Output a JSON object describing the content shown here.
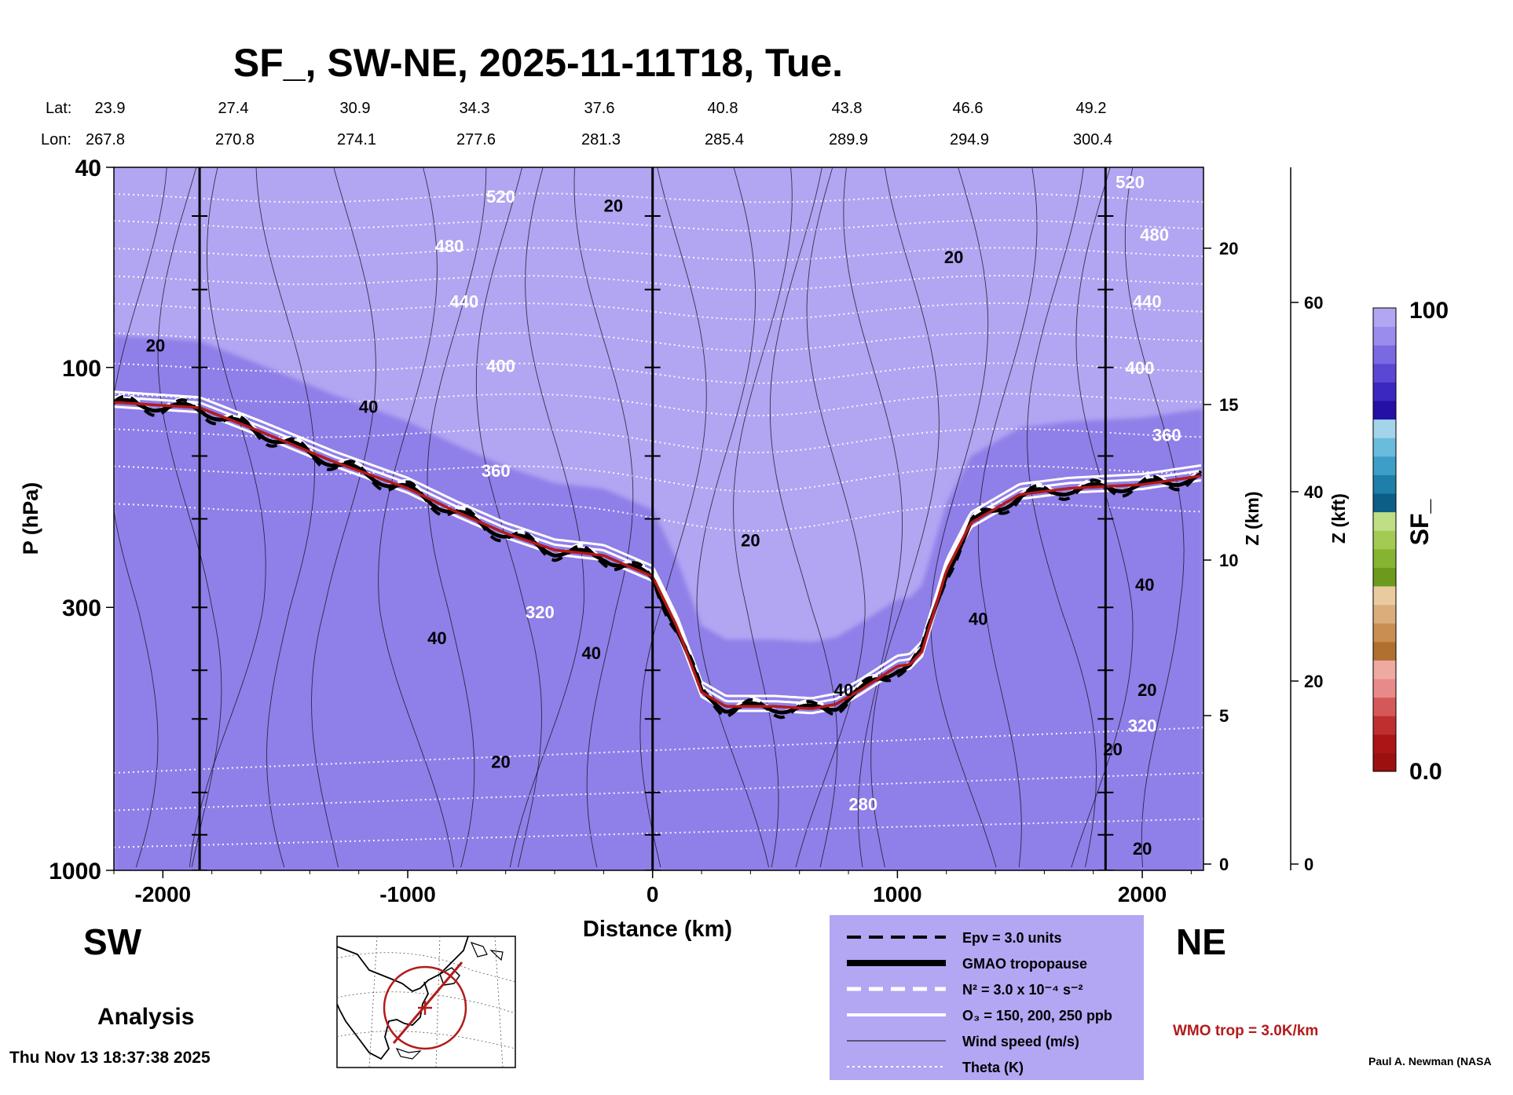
{
  "chart_data": {
    "type": "heatmap",
    "title": "SF_, SW-NE, 2025-11-11T18, Tue.",
    "xlabel": "Distance (km)",
    "ylabel": "P (hPa)",
    "right_axis_km_label": "Z (km)",
    "right_axis_kft_label": "Z (kft)",
    "colorbar_label": "SF_",
    "colorbar_max_label": "100",
    "colorbar_min_label": "0.0",
    "xlim": [
      -2200,
      2250
    ],
    "ylim": [
      1000,
      40
    ],
    "y_scale": "log",
    "x_ticks": [
      -2000,
      -1000,
      0,
      1000,
      2000
    ],
    "x_tick_labels": [
      "-2000",
      "-1000",
      "0",
      "1000",
      "2000"
    ],
    "y_ticks": [
      40,
      100,
      300,
      1000
    ],
    "y_tick_labels": [
      "40",
      "100",
      "300",
      "1000"
    ],
    "z_km_ticks": [
      0,
      5,
      10,
      15,
      20
    ],
    "z_km_tick_labels": [
      "0",
      "5",
      "10",
      "15",
      "20"
    ],
    "z_kft_ticks": [
      0,
      20,
      40,
      60
    ],
    "z_kft_tick_labels": [
      "0",
      "20",
      "40",
      "60"
    ],
    "lat_label": "Lat:",
    "lon_label": "Lon:",
    "lat_values": [
      "23.9",
      "27.4",
      "30.9",
      "34.3",
      "37.6",
      "40.8",
      "43.8",
      "46.6",
      "49.2"
    ],
    "lon_values": [
      "267.8",
      "270.8",
      "274.1",
      "277.6",
      "281.3",
      "285.4",
      "289.9",
      "294.9",
      "300.4"
    ],
    "vertical_markers_km": [
      -1850,
      0,
      1850
    ],
    "theta_labels": [
      {
        "text": "520",
        "x": -620,
        "p": 47
      },
      {
        "text": "480",
        "x": -830,
        "p": 59
      },
      {
        "text": "440",
        "x": -770,
        "p": 76
      },
      {
        "text": "400",
        "x": -620,
        "p": 102
      },
      {
        "text": "360",
        "x": -640,
        "p": 165
      },
      {
        "text": "320",
        "x": -460,
        "p": 315
      },
      {
        "text": "280",
        "x": 860,
        "p": 760
      },
      {
        "text": "520",
        "x": 1950,
        "p": 44
      },
      {
        "text": "480",
        "x": 2050,
        "p": 56
      },
      {
        "text": "440",
        "x": 2020,
        "p": 76
      },
      {
        "text": "400",
        "x": 1990,
        "p": 103
      },
      {
        "text": "360",
        "x": 2100,
        "p": 140
      },
      {
        "text": "320",
        "x": 2000,
        "p": 530
      }
    ],
    "wind_labels": [
      {
        "text": "20",
        "x": -160,
        "p": 49
      },
      {
        "text": "20",
        "x": 1230,
        "p": 62
      },
      {
        "text": "20",
        "x": -2030,
        "p": 93
      },
      {
        "text": "40",
        "x": -1160,
        "p": 123
      },
      {
        "text": "20",
        "x": 400,
        "p": 227
      },
      {
        "text": "40",
        "x": 2010,
        "p": 278
      },
      {
        "text": "40",
        "x": -880,
        "p": 355
      },
      {
        "text": "40",
        "x": -250,
        "p": 380
      },
      {
        "text": "40",
        "x": 1330,
        "p": 325
      },
      {
        "text": "40",
        "x": 780,
        "p": 450
      },
      {
        "text": "20",
        "x": 2020,
        "p": 450
      },
      {
        "text": "20",
        "x": 1880,
        "p": 590
      },
      {
        "text": "20",
        "x": -620,
        "p": 625
      },
      {
        "text": "20",
        "x": 2000,
        "p": 930
      }
    ],
    "legend_entries": [
      {
        "label": "Epv = 3.0 units",
        "style": "dashed-black"
      },
      {
        "label": "GMAO tropopause",
        "style": "thick-black"
      },
      {
        "label": "N² = 3.0 x 10⁻⁴ s⁻²",
        "style": "dashed-white"
      },
      {
        "label": "O₃ = 150, 200, 250 ppb",
        "style": "solid-white"
      },
      {
        "label": "Wind speed (m/s)",
        "style": "thin-black"
      },
      {
        "label": "Theta (K)",
        "style": "dotted-white"
      }
    ],
    "wmo_label": "WMO trop = 3.0K/km",
    "tropopause_hpa": [
      [
        -2200,
        118
      ],
      [
        -1850,
        121
      ],
      [
        -1600,
        135
      ],
      [
        -1300,
        155
      ],
      [
        -1000,
        175
      ],
      [
        -800,
        195
      ],
      [
        -600,
        215
      ],
      [
        -400,
        232
      ],
      [
        -200,
        238
      ],
      [
        0,
        262
      ],
      [
        100,
        330
      ],
      [
        200,
        445
      ],
      [
        300,
        475
      ],
      [
        500,
        475
      ],
      [
        650,
        480
      ],
      [
        750,
        470
      ],
      [
        850,
        440
      ],
      [
        1000,
        395
      ],
      [
        1050,
        392
      ],
      [
        1100,
        370
      ],
      [
        1200,
        255
      ],
      [
        1300,
        205
      ],
      [
        1500,
        180
      ],
      [
        1700,
        175
      ],
      [
        2000,
        172
      ],
      [
        2250,
        165
      ]
    ],
    "colorbar_colors": [
      "#9c1010",
      "#ac1515",
      "#bf2f2f",
      "#d55858",
      "#e98a8a",
      "#eeaaa0",
      "#b0702f",
      "#c98f52",
      "#dcad7c",
      "#e9cb9f",
      "#6b9a1c",
      "#86b432",
      "#a3cb54",
      "#c0de86",
      "#0d5e86",
      "#1e7fa8",
      "#3d9fc7",
      "#6abcdc",
      "#a3d4ea",
      "#2510a5",
      "#3b28c0",
      "#5a47d3",
      "#7a6ae2",
      "#9a8cec",
      "#b2a5f2"
    ],
    "grid": false,
    "legend_position": "bottom-center"
  },
  "labels": {
    "left_region": "SW",
    "right_region": "NE",
    "analysis": "Analysis",
    "timestamp": "Thu Nov 13 18:37:38 2025",
    "credit": "Paul A. Newman (NASA"
  },
  "colors": {
    "legend_bg": "#b3a6f3",
    "wmo_red": "#b31b1b",
    "background_violet": "#b2a5f2",
    "background_red": "#9c1010"
  }
}
